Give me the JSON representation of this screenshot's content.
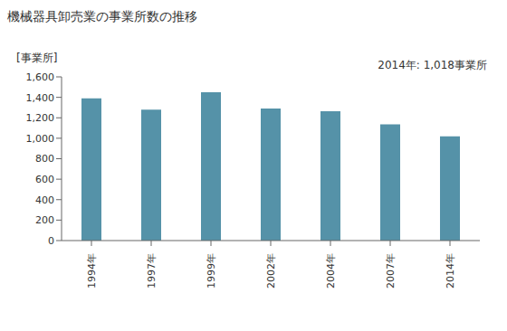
{
  "chart_data": {
    "type": "bar",
    "title": "機械器具卸売業の事業所数の推移",
    "y_label": "[事業所]",
    "annotation": "2014年: 1,018事業所",
    "categories": [
      "1994年",
      "1997年",
      "1999年",
      "2002年",
      "2004年",
      "2007年",
      "2014年"
    ],
    "values": [
      1390,
      1280,
      1450,
      1290,
      1265,
      1135,
      1018
    ],
    "color": "#5592a8",
    "ylim": [
      0,
      1600
    ],
    "yticks": [
      0,
      200,
      400,
      600,
      800,
      {
        "value": 1000,
        "label": "1,000"
      },
      {
        "value": 1200,
        "label": "1,200"
      },
      {
        "value": 1400,
        "label": "1,400"
      },
      {
        "value": 1600,
        "label": "1,600"
      }
    ],
    "grid": false
  }
}
